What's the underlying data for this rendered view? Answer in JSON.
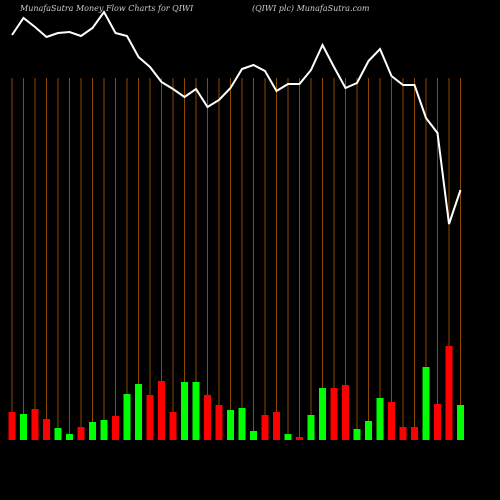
{
  "chart_data": {
    "type": "money-flow",
    "title": "MunafaSutra  Money Flow  Charts for QIWI",
    "subtitle": "(QIWI plc) MunafaSutra.com",
    "ylim": [
      0,
      430
    ],
    "series": [
      {
        "name": "price",
        "color": "#ffffff",
        "values": [
          405,
          422,
          413,
          403,
          407,
          408,
          404,
          412,
          428,
          407,
          404,
          383,
          373,
          358,
          351,
          343,
          351,
          333,
          340,
          352,
          371,
          375,
          369,
          349,
          356,
          356,
          370,
          395,
          373,
          352,
          357,
          379,
          391,
          364,
          355,
          355,
          322,
          307,
          216,
          250
        ]
      },
      {
        "name": "volume",
        "values": [
          28,
          26,
          31,
          21,
          12,
          6,
          13,
          18,
          20,
          24,
          46,
          56,
          45,
          59,
          28,
          58,
          58,
          45,
          35,
          30,
          32,
          9,
          25,
          28,
          6,
          3,
          25,
          52,
          52,
          55,
          11,
          19,
          42,
          38,
          13,
          13,
          73,
          36,
          94,
          35
        ],
        "colors": [
          "#ff0000",
          "#00ff00",
          "#ff0000",
          "#ff0000",
          "#00ff00",
          "#00ff00",
          "#ff0000",
          "#00ff00",
          "#00ff00",
          "#ff0000",
          "#00ff00",
          "#00ff00",
          "#ff0000",
          "#ff0000",
          "#ff0000",
          "#00ff00",
          "#00ff00",
          "#ff0000",
          "#ff0000",
          "#00ff00",
          "#00ff00",
          "#00ff00",
          "#ff0000",
          "#ff0000",
          "#00ff00",
          "#ff0000",
          "#00ff00",
          "#00ff00",
          "#ff0000",
          "#ff0000",
          "#00ff00",
          "#00ff00",
          "#00ff00",
          "#ff0000",
          "#ff0000",
          "#ff0000",
          "#00ff00",
          "#ff0000",
          "#ff0000",
          "#00ff00"
        ]
      }
    ]
  }
}
